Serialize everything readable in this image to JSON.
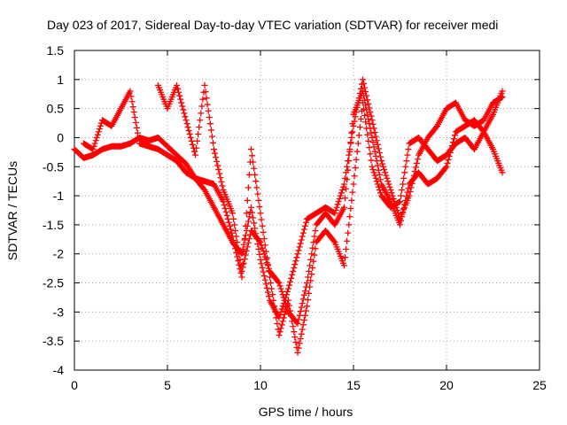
{
  "chart_data": {
    "type": "scatter",
    "title": "Day 023 of 2017, Sidereal Day-to-day VTEC variation (SDTVAR) for receiver medi",
    "xlabel": "GPS time / hours",
    "ylabel": "SDTVAR / TECUs",
    "xlim": [
      0,
      25
    ],
    "ylim": [
      -4,
      1.5
    ],
    "xticks": [
      "0",
      "5",
      "10",
      "15",
      "20",
      "25"
    ],
    "yticks": [
      "1.5",
      "1",
      "0.5",
      "0",
      "-0.5",
      "-1",
      "-1.5",
      "-2",
      "-2.5",
      "-3",
      "-3.5",
      "-4"
    ],
    "grid": true,
    "marker": "plus",
    "color": "#ff0000",
    "series": [
      {
        "x": [
          0,
          0.5,
          1,
          1.5,
          2,
          2.5,
          3,
          3.5,
          4,
          4.5,
          5,
          5.5,
          6,
          6.5,
          7,
          7.5,
          8,
          8.5,
          9,
          9.5,
          10,
          10.5,
          11,
          11.5,
          12,
          12.5,
          13,
          13.5,
          14,
          14.5,
          15,
          15.5,
          16,
          16.5,
          17,
          17.5,
          18,
          18.5,
          19,
          19.5,
          20,
          20.5,
          21,
          21.5,
          22,
          22.5,
          23
        ],
        "values": [
          -0.2,
          -0.35,
          -0.3,
          -0.2,
          -0.15,
          -0.15,
          -0.1,
          0,
          -0.05,
          0,
          -0.15,
          -0.3,
          -0.45,
          -0.7,
          -0.9,
          -1.2,
          -1.5,
          -1.8,
          -2,
          -1.2,
          -2.1,
          -2.8,
          -3.1,
          -2.6,
          -2,
          -1.4,
          -1.3,
          -1.2,
          -1.3,
          -0.8,
          0.2,
          1,
          0.3,
          -0.4,
          -0.9,
          -1.4,
          -1,
          -0.3,
          0,
          0.2,
          0.5,
          0.6,
          0.3,
          0.2,
          0.3,
          0.6,
          0.7
        ]
      },
      {
        "x": [
          0.5,
          1,
          1.5,
          2,
          2.5,
          3,
          3.5,
          4,
          4.5,
          5,
          5.5,
          6,
          6.5,
          7,
          7.5,
          8,
          8.5,
          9,
          9.5,
          10,
          10.5,
          11,
          11.5,
          12,
          12.5,
          13,
          13.5,
          14,
          14.5,
          15,
          15.5,
          16,
          16.5,
          17,
          17.5,
          18,
          18.5,
          19,
          19.5,
          20,
          20.5,
          21,
          21.5,
          22,
          22.5,
          23
        ],
        "values": [
          -0.1,
          -0.2,
          0.3,
          0.2,
          0.5,
          0.8,
          -0.1,
          -0.15,
          -0.2,
          -0.3,
          -0.4,
          -0.6,
          -0.7,
          -0.75,
          -0.8,
          -1.1,
          -1.7,
          -2.4,
          -0.2,
          -1.3,
          -2.4,
          -3.4,
          -2.8,
          -3.7,
          -2.9,
          -1.8,
          -1.6,
          -1.8,
          -2.2,
          -0.8,
          0.6,
          -0.5,
          -1,
          -1.2,
          -1.1,
          -0.1,
          0.0,
          -0.2,
          -0.4,
          -0.3,
          -0.1,
          0,
          -0.2,
          0.1,
          0.4,
          0.8
        ]
      },
      {
        "x": [
          4.5,
          5,
          5.5,
          6,
          6.5,
          7,
          7.5,
          8,
          8.5,
          9,
          9.5,
          10,
          10.5,
          11,
          11.5,
          12,
          12.5,
          13,
          13.5,
          14,
          14.5,
          15,
          15.5,
          16,
          16.5,
          17,
          17.5,
          18,
          18.5,
          19,
          19.5,
          20,
          20.5,
          21,
          21.5,
          22,
          22.5,
          23
        ],
        "values": [
          0.9,
          0.5,
          0.9,
          0.3,
          -0.3,
          0.9,
          -0.2,
          -0.9,
          -1.3,
          -2.3,
          -1.6,
          -1.8,
          -2.3,
          -2.5,
          -3,
          -3.2,
          -2.5,
          -1.5,
          -1.3,
          -1.5,
          -1.2,
          0.4,
          0.8,
          0,
          -0.8,
          -1.1,
          -1.5,
          -0.8,
          -0.6,
          -0.8,
          -0.7,
          -0.5,
          0.1,
          0.2,
          0.3,
          0.1,
          -0.2,
          -0.6
        ]
      }
    ]
  }
}
